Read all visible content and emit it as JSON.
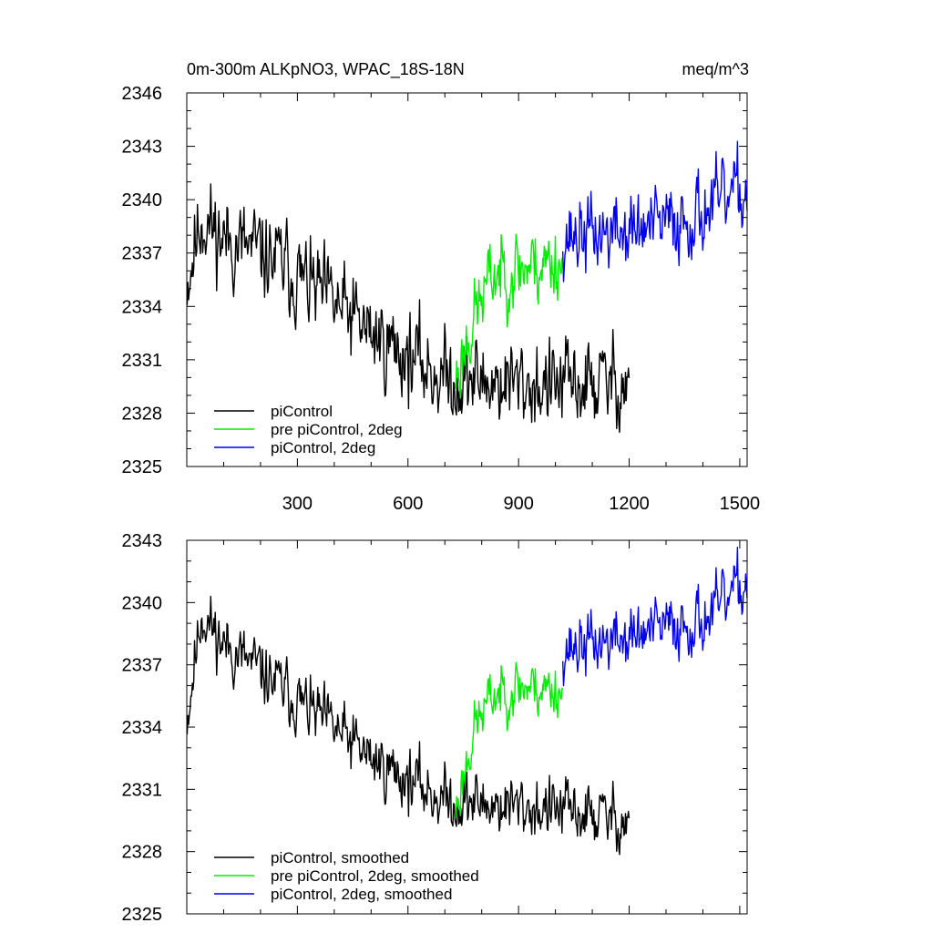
{
  "chart_data": [
    {
      "type": "line",
      "title": "0m-300m ALKpNO3, WPAC_18S-18N",
      "units": "meq/m^3",
      "xlim": [
        0,
        1520
      ],
      "ylim": [
        2325,
        2346
      ],
      "xticks": [
        300,
        600,
        900,
        1200,
        1500
      ],
      "yticks": [
        2325,
        2328,
        2331,
        2334,
        2337,
        2340,
        2343,
        2346
      ],
      "legend_position": "bottom-left",
      "series": [
        {
          "name": "piControl",
          "color": "#000000",
          "x_start": 1,
          "x_end": 1200,
          "samples": 600,
          "seed": 11,
          "trend": [
            [
              1,
              2335.5
            ],
            [
              40,
              2339.0
            ],
            [
              100,
              2337.8
            ],
            [
              250,
              2336.5
            ],
            [
              500,
              2332.5
            ],
            [
              700,
              2330.0
            ],
            [
              1000,
              2329.5
            ],
            [
              1200,
              2329.8
            ]
          ],
          "noise": 1.5
        },
        {
          "name": "pre piControl, 2deg",
          "color": "#00ee00",
          "x_start": 730,
          "x_end": 1020,
          "samples": 145,
          "seed": 23,
          "trend": [
            [
              730,
              2330.0
            ],
            [
              780,
              2333.5
            ],
            [
              830,
              2335.8
            ],
            [
              900,
              2336.2
            ],
            [
              1020,
              2336.6
            ]
          ],
          "noise": 1.3
        },
        {
          "name": "piControl, 2deg",
          "color": "#0000ee",
          "x_start": 1020,
          "x_end": 1520,
          "samples": 250,
          "seed": 37,
          "trend": [
            [
              1020,
              2338.0
            ],
            [
              1200,
              2338.2
            ],
            [
              1300,
              2338.6
            ],
            [
              1420,
              2339.5
            ],
            [
              1520,
              2340.5
            ]
          ],
          "noise": 1.3
        }
      ]
    },
    {
      "type": "line",
      "xlim": [
        0,
        1520
      ],
      "ylim": [
        2325,
        2343
      ],
      "xticks": [
        300,
        600,
        900,
        1200,
        1500
      ],
      "yticks": [
        2325,
        2328,
        2331,
        2334,
        2337,
        2340,
        2343
      ],
      "legend_position": "bottom-left",
      "series": [
        {
          "name": "piControl, smoothed",
          "color": "#000000",
          "x_start": 1,
          "x_end": 1200,
          "samples": 600,
          "seed": 11,
          "trend": [
            [
              1,
              2334.5
            ],
            [
              40,
              2339.5
            ],
            [
              100,
              2338.0
            ],
            [
              250,
              2336.0
            ],
            [
              500,
              2332.5
            ],
            [
              700,
              2330.5
            ],
            [
              1000,
              2330.0
            ],
            [
              1200,
              2329.5
            ]
          ],
          "noise": 0.9
        },
        {
          "name": "pre piControl, 2deg, smoothed",
          "color": "#00ee00",
          "x_start": 730,
          "x_end": 1020,
          "samples": 145,
          "seed": 23,
          "trend": [
            [
              730,
              2330.0
            ],
            [
              780,
              2334.0
            ],
            [
              830,
              2335.5
            ],
            [
              900,
              2336.0
            ],
            [
              1020,
              2335.8
            ]
          ],
          "noise": 0.8
        },
        {
          "name": "piControl, 2deg, smoothed",
          "color": "#0000ee",
          "x_start": 1020,
          "x_end": 1520,
          "samples": 250,
          "seed": 37,
          "trend": [
            [
              1020,
              2337.8
            ],
            [
              1200,
              2338.3
            ],
            [
              1300,
              2338.8
            ],
            [
              1420,
              2339.3
            ],
            [
              1520,
              2341.0
            ]
          ],
          "noise": 0.9
        }
      ]
    }
  ]
}
